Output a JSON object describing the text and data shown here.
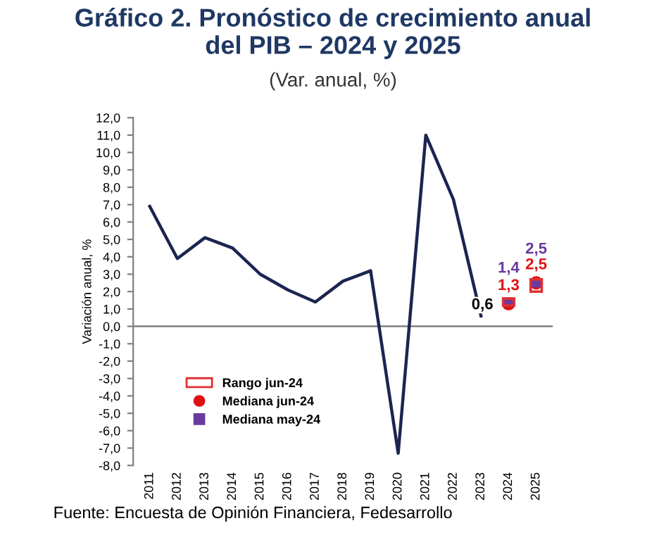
{
  "chart_data": {
    "type": "line",
    "title": "Gráfico 2. Pronóstico de crecimiento anual\ndel PIB – 2024 y 2025",
    "subtitle": "(Var. anual, %)",
    "ylabel": "Variación anual, %",
    "categories": [
      "2011",
      "2012",
      "2013",
      "2014",
      "2015",
      "2016",
      "2017",
      "2018",
      "2019",
      "2020",
      "2021",
      "2022",
      "2023",
      "2024",
      "2025"
    ],
    "series": [
      {
        "color": "#1c2550",
        "values": [
          6.9,
          3.9,
          5.1,
          4.5,
          3.0,
          2.1,
          1.4,
          2.6,
          3.2,
          -7.3,
          11.0,
          7.3,
          0.6,
          null,
          null
        ],
        "value_labels": [
          null,
          null,
          null,
          null,
          null,
          null,
          null,
          null,
          null,
          null,
          null,
          null,
          "0,6",
          null,
          null
        ]
      },
      {
        "type": "bar",
        "name": "Rango jun-24",
        "color": "#e03030",
        "base": [
          null,
          null,
          null,
          null,
          null,
          null,
          null,
          null,
          null,
          null,
          null,
          null,
          null,
          1.2,
          2.0
        ],
        "values": [
          null,
          null,
          null,
          null,
          null,
          null,
          null,
          null,
          null,
          null,
          null,
          null,
          null,
          0.4,
          0.7
        ]
      },
      {
        "type": "scatter",
        "name": "Mediana jun-24",
        "color": "#e01010",
        "marker": "circle",
        "values": [
          null,
          null,
          null,
          null,
          null,
          null,
          null,
          null,
          null,
          null,
          null,
          null,
          null,
          1.3,
          2.5
        ],
        "value_labels": [
          null,
          null,
          null,
          null,
          null,
          null,
          null,
          null,
          null,
          null,
          null,
          null,
          null,
          "1,3",
          "2,5"
        ]
      },
      {
        "type": "scatter",
        "name": "Mediana may-24",
        "color": "#6a3aa0",
        "marker": "square",
        "values": [
          null,
          null,
          null,
          null,
          null,
          null,
          null,
          null,
          null,
          null,
          null,
          null,
          null,
          1.4,
          2.5
        ],
        "value_labels": [
          null,
          null,
          null,
          null,
          null,
          null,
          null,
          null,
          null,
          null,
          null,
          null,
          null,
          "1,4",
          "2,5"
        ]
      }
    ],
    "ylim": [
      -8,
      12
    ],
    "yticks": [
      {
        "value": 12,
        "label": "12,0"
      },
      {
        "value": 11,
        "label": "11,0"
      },
      {
        "value": 10,
        "label": "10,0"
      },
      {
        "value": 9,
        "label": "9,0"
      },
      {
        "value": 8,
        "label": "8,0"
      },
      {
        "value": 7,
        "label": "7,0"
      },
      {
        "value": 6,
        "label": "6,0"
      },
      {
        "value": 5,
        "label": "5,0"
      },
      {
        "value": 4,
        "label": "4,0"
      },
      {
        "value": 3,
        "label": "3,0"
      },
      {
        "value": 2,
        "label": "2,0"
      },
      {
        "value": 1,
        "label": "1,0"
      },
      {
        "value": 0,
        "label": "0,0"
      },
      {
        "value": -1,
        "label": "-1,0"
      },
      {
        "value": -2,
        "label": "-2,0"
      },
      {
        "value": -3,
        "label": "-3,0"
      },
      {
        "value": -4,
        "label": "-4,0"
      },
      {
        "value": -5,
        "label": "-5,0"
      },
      {
        "value": -6,
        "label": "-6,0"
      },
      {
        "value": -7,
        "label": "-7,0"
      },
      {
        "value": -8,
        "label": "-8,0"
      }
    ],
    "ref_lines": [
      {
        "axis": "y",
        "value": 0,
        "color": "#808080"
      }
    ],
    "grid": false,
    "legend": "lower left",
    "annotations": [
      "Fuente: Encuesta de Opinión Financiera, Fedesarrollo"
    ]
  }
}
